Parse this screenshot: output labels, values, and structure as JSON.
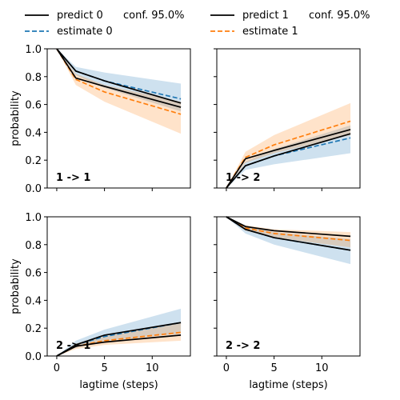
{
  "legend": {
    "entries": [
      {
        "label": "predict 0",
        "color": "#000000",
        "dash": false
      },
      {
        "label": "estimate 0",
        "color": "#1f77b4",
        "dash": true
      },
      {
        "label": "predict 1",
        "color": "#000000",
        "dash": false
      },
      {
        "label": "estimate 1",
        "color": "#ff7f0e",
        "dash": true
      }
    ],
    "conf_labels": [
      "conf. 95.0%",
      "conf. 95.0%"
    ]
  },
  "colors": {
    "blue": "#1f77b4",
    "orange": "#ff7f0e",
    "black": "#000000"
  },
  "chart_data": [
    {
      "type": "line",
      "panel": "1 -> 1",
      "xlabel": "",
      "ylabel": "probability",
      "xlim": [
        -1,
        14
      ],
      "ylim": [
        0,
        1
      ],
      "xticks": [
        0,
        5,
        10
      ],
      "yticks": [
        0.0,
        0.2,
        0.4,
        0.6,
        0.8,
        1.0
      ],
      "x": [
        0,
        2,
        5,
        13
      ],
      "series": [
        {
          "name": "predict 0",
          "color": "black",
          "dash": false,
          "values": [
            1.0,
            0.84,
            0.77,
            0.61
          ]
        },
        {
          "name": "estimate 0",
          "color": "blue",
          "dash": true,
          "values": [
            1.0,
            0.84,
            0.77,
            0.64
          ],
          "band": [
            [
              1.0,
              1.0
            ],
            [
              0.81,
              0.87
            ],
            [
              0.72,
              0.83
            ],
            [
              0.55,
              0.75
            ]
          ]
        },
        {
          "name": "predict 1",
          "color": "black",
          "dash": false,
          "values": [
            1.0,
            0.79,
            0.73,
            0.58
          ]
        },
        {
          "name": "estimate 1",
          "color": "orange",
          "dash": true,
          "values": [
            1.0,
            0.78,
            0.69,
            0.53
          ],
          "band": [
            [
              1.0,
              1.0
            ],
            [
              0.74,
              0.82
            ],
            [
              0.62,
              0.74
            ],
            [
              0.39,
              0.62
            ]
          ]
        }
      ]
    },
    {
      "type": "line",
      "panel": "1 -> 2",
      "xlabel": "",
      "ylabel": "",
      "xlim": [
        -1,
        14
      ],
      "ylim": [
        0,
        1
      ],
      "xticks": [
        0,
        5,
        10
      ],
      "yticks": [
        0.0,
        0.2,
        0.4,
        0.6,
        0.8,
        1.0
      ],
      "x": [
        0,
        2,
        5,
        13
      ],
      "series": [
        {
          "name": "predict 0",
          "color": "black",
          "dash": false,
          "values": [
            0.0,
            0.16,
            0.23,
            0.39
          ]
        },
        {
          "name": "estimate 0",
          "color": "blue",
          "dash": true,
          "values": [
            0.0,
            0.16,
            0.23,
            0.36
          ],
          "band": [
            [
              0.0,
              0.0
            ],
            [
              0.13,
              0.19
            ],
            [
              0.17,
              0.28
            ],
            [
              0.25,
              0.45
            ]
          ]
        },
        {
          "name": "predict 1",
          "color": "black",
          "dash": false,
          "values": [
            0.0,
            0.21,
            0.27,
            0.42
          ]
        },
        {
          "name": "estimate 1",
          "color": "orange",
          "dash": true,
          "values": [
            0.0,
            0.22,
            0.31,
            0.48
          ],
          "band": [
            [
              0.0,
              0.0
            ],
            [
              0.18,
              0.26
            ],
            [
              0.25,
              0.38
            ],
            [
              0.38,
              0.61
            ]
          ]
        }
      ]
    },
    {
      "type": "line",
      "panel": "2 -> 1",
      "xlabel": "lagtime (steps)",
      "ylabel": "probability",
      "xlim": [
        -1,
        14
      ],
      "ylim": [
        0,
        1
      ],
      "xticks": [
        0,
        5,
        10
      ],
      "yticks": [
        0.0,
        0.2,
        0.4,
        0.6,
        0.8,
        1.0
      ],
      "x": [
        0,
        2,
        5,
        13
      ],
      "series": [
        {
          "name": "predict 0",
          "color": "black",
          "dash": false,
          "values": [
            0.0,
            0.08,
            0.15,
            0.24
          ]
        },
        {
          "name": "estimate 0",
          "color": "blue",
          "dash": true,
          "values": [
            0.0,
            0.08,
            0.14,
            0.24
          ],
          "band": [
            [
              0.0,
              0.0
            ],
            [
              0.06,
              0.11
            ],
            [
              0.11,
              0.19
            ],
            [
              0.16,
              0.34
            ]
          ]
        },
        {
          "name": "predict 1",
          "color": "black",
          "dash": false,
          "values": [
            0.0,
            0.07,
            0.1,
            0.15
          ]
        },
        {
          "name": "estimate 1",
          "color": "orange",
          "dash": true,
          "values": [
            0.0,
            0.07,
            0.11,
            0.17
          ],
          "band": [
            [
              0.0,
              0.0
            ],
            [
              0.05,
              0.09
            ],
            [
              0.08,
              0.14
            ],
            [
              0.11,
              0.24
            ]
          ]
        }
      ]
    },
    {
      "type": "line",
      "panel": "2 -> 2",
      "xlabel": "lagtime (steps)",
      "ylabel": "",
      "xlim": [
        -1,
        14
      ],
      "ylim": [
        0,
        1
      ],
      "xticks": [
        0,
        5,
        10
      ],
      "yticks": [
        0.0,
        0.2,
        0.4,
        0.6,
        0.8,
        1.0
      ],
      "x": [
        0,
        2,
        5,
        13
      ],
      "series": [
        {
          "name": "predict 0",
          "color": "black",
          "dash": false,
          "values": [
            1.0,
            0.91,
            0.85,
            0.76
          ]
        },
        {
          "name": "estimate 0",
          "color": "blue",
          "dash": true,
          "values": [
            1.0,
            0.91,
            0.85,
            0.76
          ],
          "band": [
            [
              1.0,
              1.0
            ],
            [
              0.88,
              0.94
            ],
            [
              0.8,
              0.89
            ],
            [
              0.66,
              0.84
            ]
          ]
        },
        {
          "name": "predict 1",
          "color": "black",
          "dash": false,
          "values": [
            1.0,
            0.93,
            0.9,
            0.86
          ]
        },
        {
          "name": "estimate 1",
          "color": "orange",
          "dash": true,
          "values": [
            1.0,
            0.92,
            0.88,
            0.83
          ],
          "band": [
            [
              1.0,
              1.0
            ],
            [
              0.9,
              0.94
            ],
            [
              0.85,
              0.91
            ],
            [
              0.78,
              0.89
            ]
          ]
        }
      ]
    }
  ]
}
